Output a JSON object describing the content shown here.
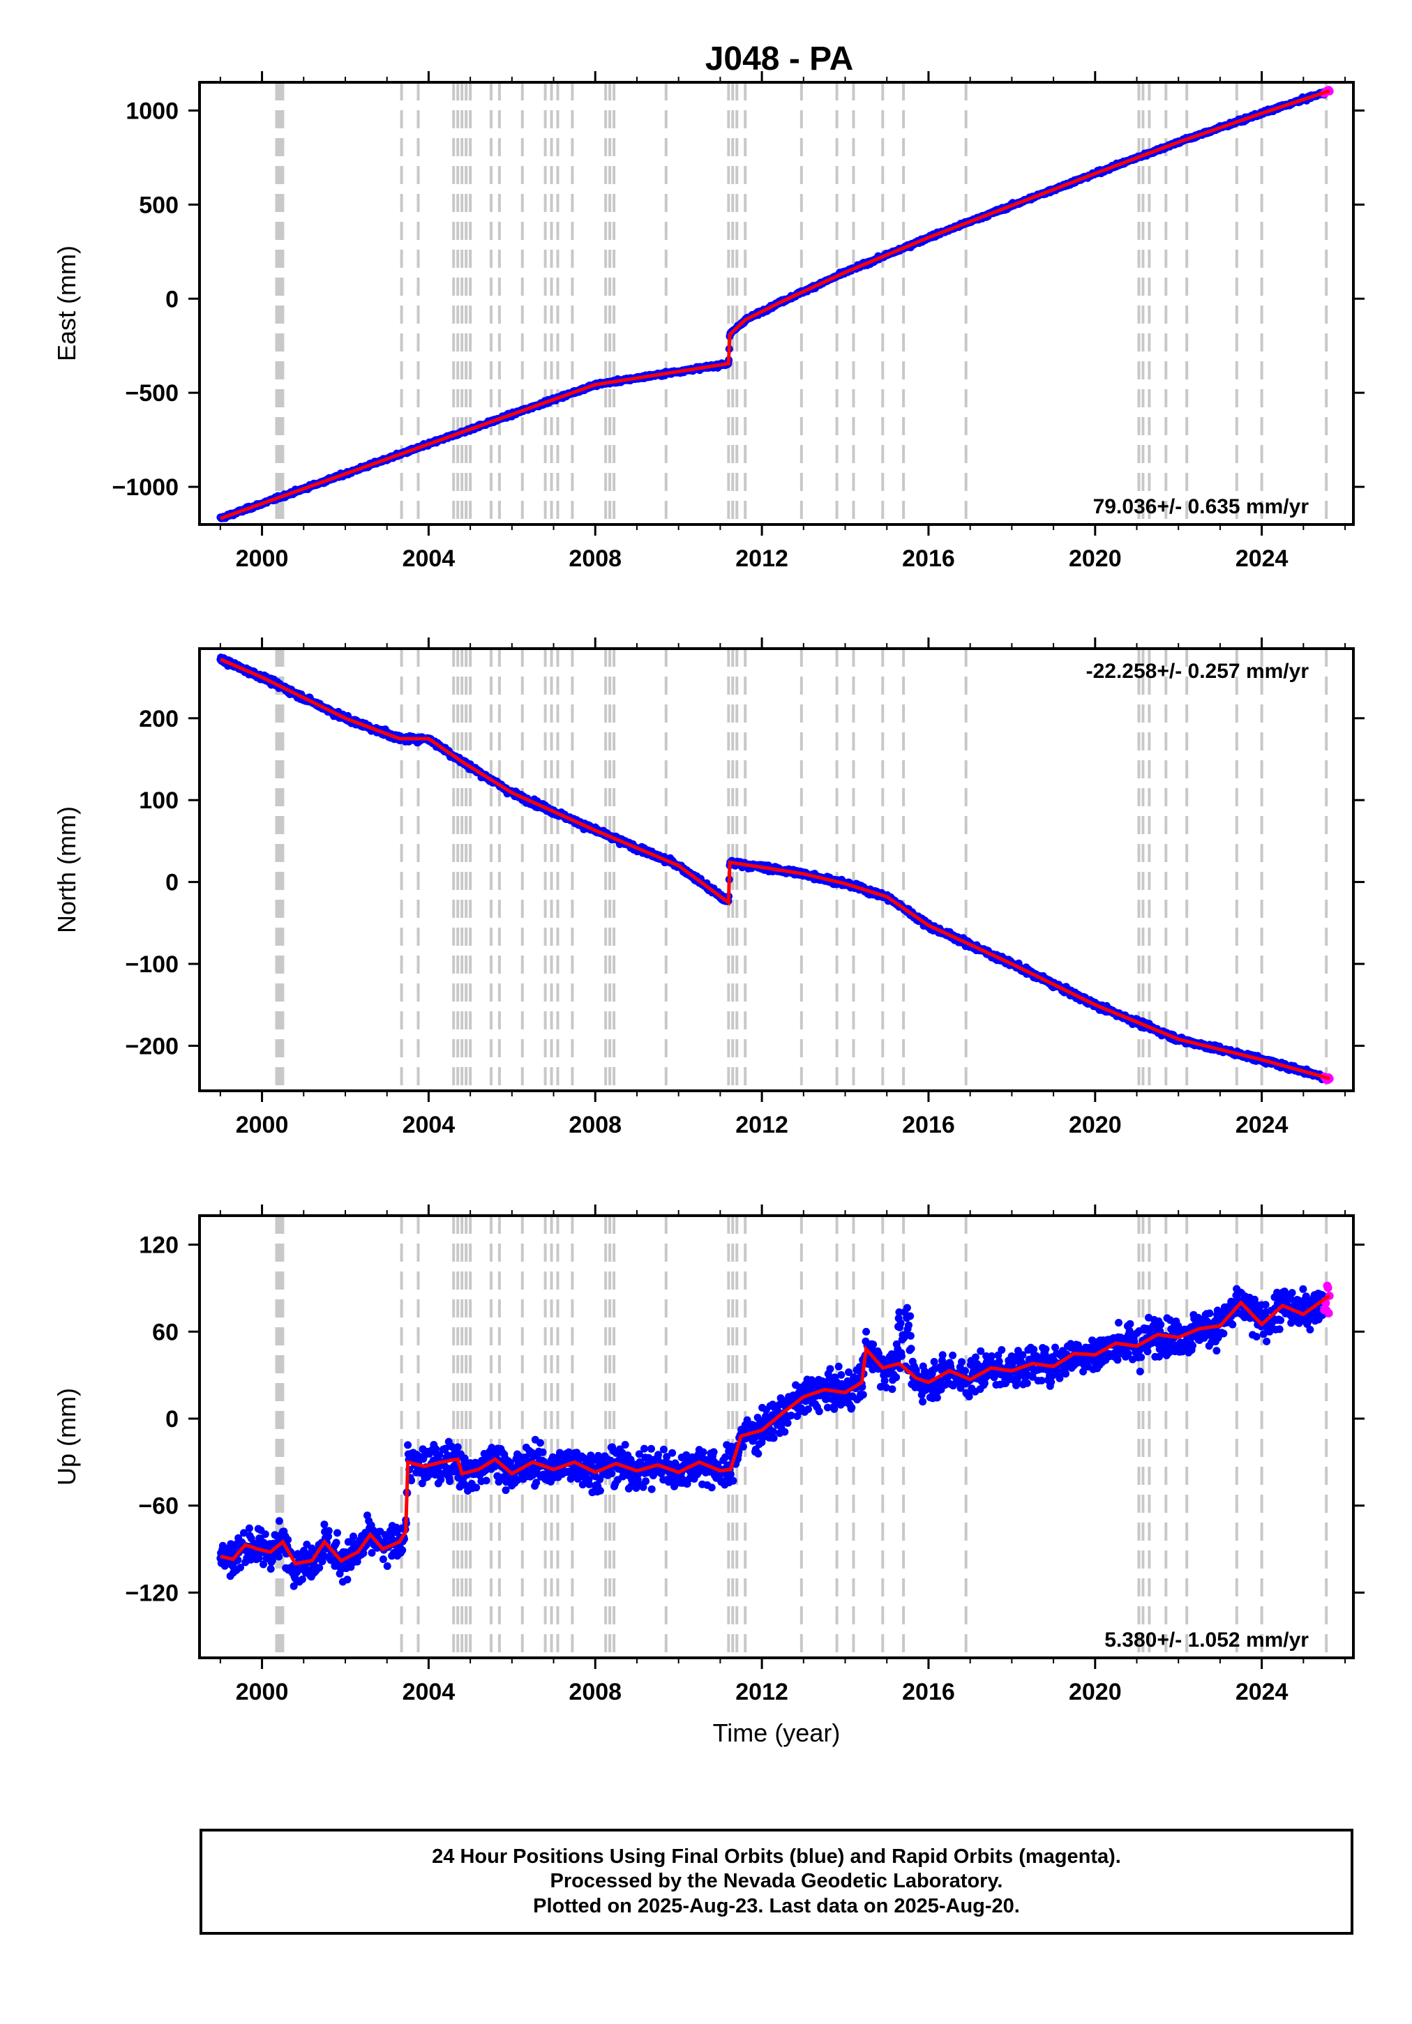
{
  "title": "J048 - PA",
  "colors": {
    "final_orbits": "#0000ff",
    "rapid_orbits": "#ff00ff",
    "model": "#ff0000",
    "events": "#c8c8c8"
  },
  "chart_data": [
    {
      "type": "scatter",
      "component": "East",
      "ylabel": "East (mm)",
      "xlabel": "",
      "xlim": [
        1998.5,
        2026.2
      ],
      "ylim": [
        -1200,
        1150
      ],
      "yticks": [
        -1000,
        -500,
        0,
        500,
        1000
      ],
      "xticks": [
        2000,
        2004,
        2008,
        2012,
        2016,
        2020,
        2024
      ],
      "rate_label": "79.036+/- 0.635 mm/yr",
      "rate_label_position": "bottom-right",
      "grid": false,
      "model": [
        [
          1999.0,
          -1168
        ],
        [
          2002.0,
          -931
        ],
        [
          2005.0,
          -694
        ],
        [
          2008.0,
          -457
        ],
        [
          2011.2,
          -345
        ],
        [
          2011.23,
          -190
        ],
        [
          2011.6,
          -113
        ],
        [
          2012.5,
          -13
        ],
        [
          2014.0,
          140
        ],
        [
          2016.0,
          325
        ],
        [
          2018.0,
          495
        ],
        [
          2020.0,
          665
        ],
        [
          2022.0,
          832
        ],
        [
          2024.0,
          985
        ],
        [
          2025.63,
          1105
        ]
      ]
    },
    {
      "type": "scatter",
      "component": "North",
      "ylabel": "North (mm)",
      "xlabel": "",
      "xlim": [
        1998.5,
        2026.2
      ],
      "ylim": [
        -255,
        285
      ],
      "yticks": [
        -200,
        -100,
        0,
        100,
        200
      ],
      "xticks": [
        2000,
        2004,
        2008,
        2012,
        2016,
        2020,
        2024
      ],
      "rate_label": "-22.258+/- 0.257 mm/yr",
      "rate_label_position": "top-right",
      "grid": false,
      "model": [
        [
          1999.0,
          272
        ],
        [
          2000.0,
          250
        ],
        [
          2002.0,
          200
        ],
        [
          2003.3,
          175
        ],
        [
          2004.0,
          175
        ],
        [
          2004.8,
          147
        ],
        [
          2006.0,
          109
        ],
        [
          2008.0,
          63
        ],
        [
          2010.0,
          20
        ],
        [
          2011.2,
          -25
        ],
        [
          2011.23,
          24
        ],
        [
          2012.0,
          18
        ],
        [
          2013.0,
          10
        ],
        [
          2014.0,
          -2
        ],
        [
          2015.0,
          -18
        ],
        [
          2016.0,
          -53
        ],
        [
          2018.0,
          -100
        ],
        [
          2020.0,
          -150
        ],
        [
          2022.0,
          -192
        ],
        [
          2024.0,
          -217
        ],
        [
          2025.63,
          -240
        ]
      ]
    },
    {
      "type": "scatter",
      "component": "Up",
      "ylabel": "Up (mm)",
      "xlabel": "Time (year)",
      "xlim": [
        1998.5,
        2026.2
      ],
      "ylim": [
        -165,
        140
      ],
      "yticks": [
        -120,
        -60,
        0,
        60,
        120
      ],
      "xticks": [
        2000,
        2004,
        2008,
        2012,
        2016,
        2020,
        2024
      ],
      "rate_label": "5.380+/- 1.052 mm/yr",
      "rate_label_position": "bottom-right",
      "grid": false,
      "model": [
        [
          1999.0,
          -95
        ],
        [
          1999.3,
          -97
        ],
        [
          1999.6,
          -87
        ],
        [
          1999.9,
          -90
        ],
        [
          2000.2,
          -92
        ],
        [
          2000.5,
          -85
        ],
        [
          2000.8,
          -100
        ],
        [
          2001.2,
          -98
        ],
        [
          2001.5,
          -85
        ],
        [
          2001.9,
          -98
        ],
        [
          2002.3,
          -92
        ],
        [
          2002.6,
          -80
        ],
        [
          2002.9,
          -90
        ],
        [
          2003.3,
          -85
        ],
        [
          2003.45,
          -78
        ],
        [
          2003.5,
          -30
        ],
        [
          2003.9,
          -33
        ],
        [
          2004.3,
          -30
        ],
        [
          2004.7,
          -28
        ],
        [
          2004.8,
          -38
        ],
        [
          2005.2,
          -35
        ],
        [
          2005.6,
          -28
        ],
        [
          2006.0,
          -38
        ],
        [
          2006.5,
          -30
        ],
        [
          2007.0,
          -35
        ],
        [
          2007.5,
          -30
        ],
        [
          2008.0,
          -37
        ],
        [
          2008.5,
          -31
        ],
        [
          2009.0,
          -36
        ],
        [
          2009.5,
          -32
        ],
        [
          2010.0,
          -37
        ],
        [
          2010.5,
          -30
        ],
        [
          2011.0,
          -36
        ],
        [
          2011.25,
          -35
        ],
        [
          2011.5,
          -12
        ],
        [
          2012.0,
          -8
        ],
        [
          2012.5,
          4
        ],
        [
          2013.0,
          15
        ],
        [
          2013.5,
          20
        ],
        [
          2014.0,
          18
        ],
        [
          2014.4,
          25
        ],
        [
          2014.5,
          48
        ],
        [
          2014.9,
          35
        ],
        [
          2015.3,
          38
        ],
        [
          2015.7,
          28
        ],
        [
          2016.0,
          25
        ],
        [
          2016.5,
          33
        ],
        [
          2017.0,
          27
        ],
        [
          2017.5,
          35
        ],
        [
          2018.0,
          33
        ],
        [
          2018.5,
          38
        ],
        [
          2019.0,
          36
        ],
        [
          2019.5,
          45
        ],
        [
          2020.0,
          44
        ],
        [
          2020.5,
          52
        ],
        [
          2021.0,
          50
        ],
        [
          2021.5,
          58
        ],
        [
          2022.0,
          56
        ],
        [
          2022.5,
          62
        ],
        [
          2023.0,
          64
        ],
        [
          2023.5,
          80
        ],
        [
          2024.0,
          65
        ],
        [
          2024.5,
          78
        ],
        [
          2025.0,
          72
        ],
        [
          2025.63,
          85
        ]
      ]
    }
  ],
  "event_lines": [
    2000.35,
    2000.4,
    2000.45,
    2000.5,
    2003.35,
    2003.75,
    2004.6,
    2004.7,
    2004.8,
    2004.9,
    2005.0,
    2005.5,
    2005.7,
    2006.25,
    2006.8,
    2006.95,
    2007.1,
    2007.45,
    2008.25,
    2008.35,
    2008.45,
    2009.7,
    2011.2,
    2011.3,
    2011.4,
    2011.6,
    2012.95,
    2013.8,
    2014.2,
    2014.9,
    2015.4,
    2016.9,
    2021.05,
    2021.15,
    2021.3,
    2021.7,
    2022.2,
    2023.4,
    2024.0,
    2025.55
  ],
  "footer": {
    "line1": "24 Hour Positions Using Final Orbits (blue) and Rapid Orbits (magenta).",
    "line2": "Processed by the Nevada Geodetic Laboratory.",
    "line3": "Plotted on 2025-Aug-23. Last data on 2025-Aug-20."
  }
}
